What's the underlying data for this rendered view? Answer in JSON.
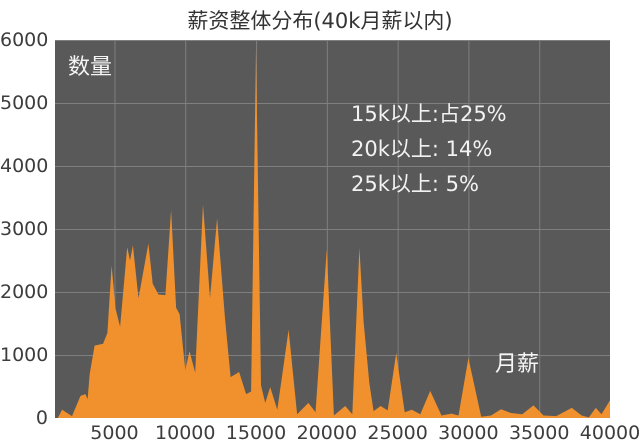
{
  "chart_data": {
    "type": "area",
    "title": "薪资整体分布(40k月薪以内)",
    "ylabel": "数量",
    "xlabel": "月薪",
    "x_range": [
      800,
      40000
    ],
    "y_range": [
      0,
      6000
    ],
    "xticks": [
      5000,
      10000,
      15000,
      20000,
      25000,
      30000,
      35000,
      40000
    ],
    "yticks": [
      0,
      1000,
      2000,
      3000,
      4000,
      5000,
      6000
    ],
    "grid": true,
    "annotations": [
      "15k以上:占25%",
      "20k以上: 14%",
      "25k以上: 5%"
    ],
    "colors": {
      "plot_bg": "#595959",
      "grid": "#7f7f7f",
      "area": "#f0912d",
      "tick_text": "#3d3d3d",
      "light_text": "#f5f5f5"
    },
    "series": [
      {
        "name": "数量",
        "points": [
          [
            1000,
            0
          ],
          [
            1300,
            130
          ],
          [
            2000,
            30
          ],
          [
            2600,
            350
          ],
          [
            2950,
            380
          ],
          [
            3100,
            300
          ],
          [
            3250,
            700
          ],
          [
            3600,
            1150
          ],
          [
            4200,
            1180
          ],
          [
            4500,
            1350
          ],
          [
            4800,
            2420
          ],
          [
            5070,
            1740
          ],
          [
            5400,
            1450
          ],
          [
            5900,
            2710
          ],
          [
            6100,
            2500
          ],
          [
            6300,
            2740
          ],
          [
            6700,
            1900
          ],
          [
            7400,
            2770
          ],
          [
            7700,
            2130
          ],
          [
            8100,
            1960
          ],
          [
            8600,
            1950
          ],
          [
            9000,
            3300
          ],
          [
            9350,
            1750
          ],
          [
            9600,
            1650
          ],
          [
            10000,
            760
          ],
          [
            10300,
            1060
          ],
          [
            10700,
            720
          ],
          [
            11250,
            3390
          ],
          [
            11750,
            1900
          ],
          [
            12250,
            3170
          ],
          [
            12800,
            1600
          ],
          [
            13200,
            650
          ],
          [
            13800,
            730
          ],
          [
            14300,
            380
          ],
          [
            14650,
            420
          ],
          [
            15000,
            5855
          ],
          [
            15350,
            520
          ],
          [
            15650,
            240
          ],
          [
            16000,
            490
          ],
          [
            16500,
            130
          ],
          [
            17300,
            1400
          ],
          [
            17900,
            60
          ],
          [
            18700,
            240
          ],
          [
            19200,
            90
          ],
          [
            20000,
            2680
          ],
          [
            20500,
            40
          ],
          [
            21300,
            190
          ],
          [
            21800,
            60
          ],
          [
            22300,
            2700
          ],
          [
            22600,
            1530
          ],
          [
            23000,
            560
          ],
          [
            23300,
            110
          ],
          [
            23800,
            190
          ],
          [
            24300,
            120
          ],
          [
            24900,
            1030
          ],
          [
            25500,
            90
          ],
          [
            26000,
            130
          ],
          [
            26600,
            60
          ],
          [
            27300,
            430
          ],
          [
            28100,
            40
          ],
          [
            28800,
            70
          ],
          [
            29300,
            40
          ],
          [
            30000,
            950
          ],
          [
            30900,
            20
          ],
          [
            31600,
            40
          ],
          [
            32300,
            140
          ],
          [
            33000,
            80
          ],
          [
            33800,
            60
          ],
          [
            34600,
            200
          ],
          [
            35300,
            40
          ],
          [
            36200,
            30
          ],
          [
            37300,
            160
          ],
          [
            38000,
            40
          ],
          [
            38500,
            10
          ],
          [
            39000,
            160
          ],
          [
            39400,
            60
          ],
          [
            40000,
            280
          ]
        ]
      }
    ]
  }
}
